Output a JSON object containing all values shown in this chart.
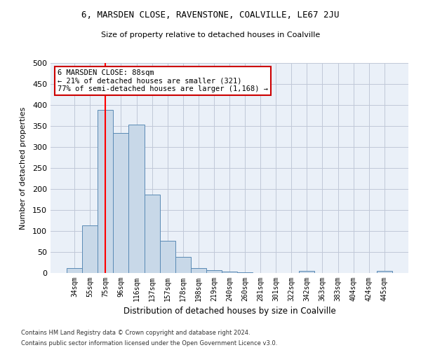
{
  "title": "6, MARSDEN CLOSE, RAVENSTONE, COALVILLE, LE67 2JU",
  "subtitle": "Size of property relative to detached houses in Coalville",
  "xlabel": "Distribution of detached houses by size in Coalville",
  "ylabel": "Number of detached properties",
  "footnote1": "Contains HM Land Registry data © Crown copyright and database right 2024.",
  "footnote2": "Contains public sector information licensed under the Open Government Licence v3.0.",
  "bar_labels": [
    "34sqm",
    "55sqm",
    "75sqm",
    "96sqm",
    "116sqm",
    "137sqm",
    "157sqm",
    "178sqm",
    "198sqm",
    "219sqm",
    "240sqm",
    "260sqm",
    "281sqm",
    "301sqm",
    "322sqm",
    "342sqm",
    "363sqm",
    "383sqm",
    "404sqm",
    "424sqm",
    "445sqm"
  ],
  "bar_values": [
    11,
    113,
    388,
    334,
    354,
    187,
    76,
    38,
    11,
    7,
    4,
    1,
    0,
    0,
    0,
    5,
    0,
    0,
    0,
    0,
    5
  ],
  "bar_color": "#c8d8e8",
  "bar_edge_color": "#5a8ab5",
  "grid_color": "#c0c8d8",
  "bg_color": "#eaf0f8",
  "annotation_text": "6 MARSDEN CLOSE: 88sqm\n← 21% of detached houses are smaller (321)\n77% of semi-detached houses are larger (1,168) →",
  "annotation_box_color": "#cc0000",
  "red_line_x": 2.0,
  "ylim": [
    0,
    500
  ],
  "yticks": [
    0,
    50,
    100,
    150,
    200,
    250,
    300,
    350,
    400,
    450,
    500
  ]
}
